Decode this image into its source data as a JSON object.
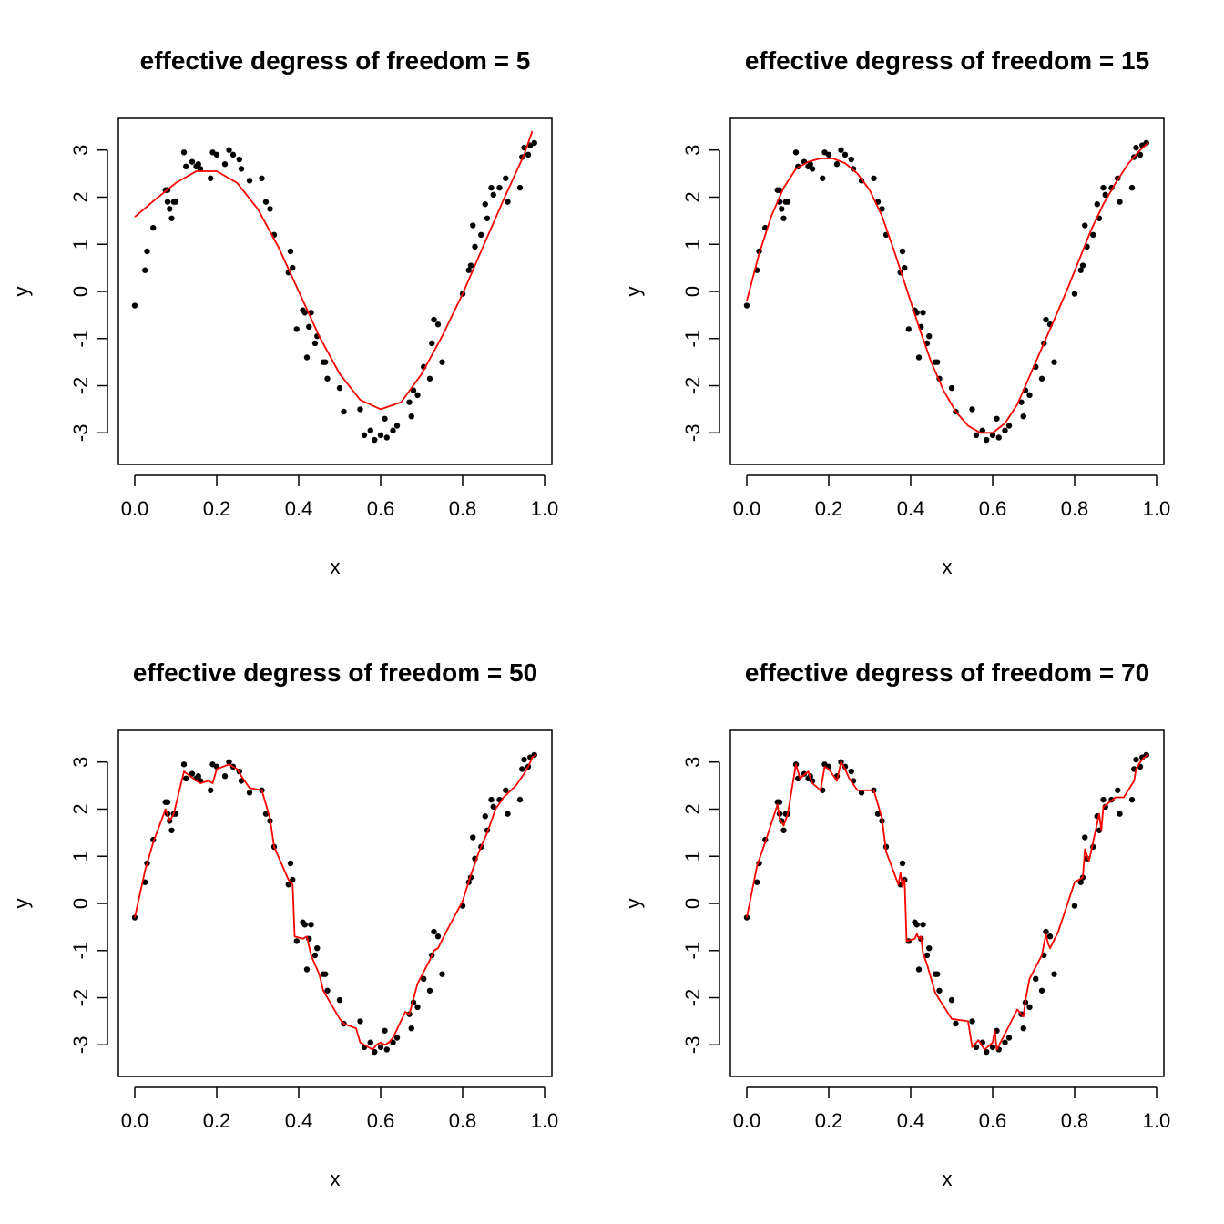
{
  "figure": {
    "panels": [
      {
        "title": "effective degress of freedom = 5",
        "xlabel": "x",
        "ylabel": "y"
      },
      {
        "title": "effective degress of freedom = 15",
        "xlabel": "x",
        "ylabel": "y"
      },
      {
        "title": "effective degress of freedom = 50",
        "xlabel": "x",
        "ylabel": "y"
      },
      {
        "title": "effective degress of freedom = 70",
        "xlabel": "x",
        "ylabel": "y"
      }
    ]
  },
  "chart_data": [
    {
      "type": "scatter",
      "title": "effective degress of freedom = 5",
      "xlabel": "x",
      "ylabel": "y",
      "xlim": [
        0,
        1
      ],
      "ylim": [
        -3.4,
        3.4
      ],
      "xticks": [
        "0.0",
        "0.2",
        "0.4",
        "0.6",
        "0.8",
        "1.0"
      ],
      "yticks": [
        "-3",
        "-2",
        "-1",
        "0",
        "1",
        "2",
        "3"
      ],
      "grid": false,
      "points": {
        "name": "",
        "color": "#000000",
        "ref": "shared_points"
      },
      "fit": {
        "color": "#ff0000",
        "x": [
          0,
          0.05,
          0.1,
          0.15,
          0.2,
          0.25,
          0.3,
          0.35,
          0.4,
          0.45,
          0.5,
          0.55,
          0.6,
          0.65,
          0.7,
          0.75,
          0.8,
          0.85,
          0.9,
          0.95,
          0.97
        ],
        "y": [
          1.58,
          1.95,
          2.3,
          2.55,
          2.55,
          2.3,
          1.75,
          0.95,
          0.0,
          -0.95,
          -1.75,
          -2.3,
          -2.5,
          -2.35,
          -1.75,
          -0.95,
          -0.05,
          0.95,
          1.95,
          2.9,
          3.4
        ]
      }
    },
    {
      "type": "scatter",
      "title": "effective degress of freedom = 15",
      "xlabel": "x",
      "ylabel": "y",
      "xlim": [
        0,
        1
      ],
      "ylim": [
        -3.4,
        3.4
      ],
      "xticks": [
        "0.0",
        "0.2",
        "0.4",
        "0.6",
        "0.8",
        "1.0"
      ],
      "yticks": [
        "-3",
        "-2",
        "-1",
        "0",
        "1",
        "2",
        "3"
      ],
      "grid": false,
      "points": {
        "name": "",
        "color": "#000000",
        "ref": "shared_points"
      },
      "fit": {
        "color": "#ff0000",
        "x": [
          0,
          0.03,
          0.06,
          0.09,
          0.12,
          0.15,
          0.18,
          0.21,
          0.24,
          0.27,
          0.3,
          0.33,
          0.36,
          0.39,
          0.42,
          0.45,
          0.48,
          0.51,
          0.54,
          0.57,
          0.6,
          0.63,
          0.66,
          0.69,
          0.72,
          0.75,
          0.78,
          0.81,
          0.84,
          0.87,
          0.9,
          0.93,
          0.96,
          0.98
        ],
        "y": [
          -0.2,
          0.8,
          1.6,
          2.2,
          2.6,
          2.75,
          2.82,
          2.82,
          2.72,
          2.5,
          2.15,
          1.6,
          0.85,
          0.05,
          -0.75,
          -1.5,
          -2.1,
          -2.55,
          -2.85,
          -3.0,
          -3.0,
          -2.8,
          -2.4,
          -1.8,
          -1.2,
          -0.6,
          0.0,
          0.65,
          1.3,
          1.85,
          2.3,
          2.7,
          3.0,
          3.15
        ]
      }
    },
    {
      "type": "scatter",
      "title": "effective degress of freedom = 50",
      "xlabel": "x",
      "ylabel": "y",
      "xlim": [
        0,
        1
      ],
      "ylim": [
        -3.4,
        3.4
      ],
      "xticks": [
        "0.0",
        "0.2",
        "0.4",
        "0.6",
        "0.8",
        "1.0"
      ],
      "yticks": [
        "-3",
        "-2",
        "-1",
        "0",
        "1",
        "2",
        "3"
      ],
      "grid": false,
      "points": {
        "name": "",
        "color": "#000000",
        "ref": "shared_points"
      },
      "fit": {
        "color": "#ff0000",
        "x": [
          0,
          0.025,
          0.045,
          0.075,
          0.085,
          0.095,
          0.12,
          0.135,
          0.15,
          0.16,
          0.18,
          0.19,
          0.2,
          0.23,
          0.25,
          0.26,
          0.28,
          0.31,
          0.33,
          0.34,
          0.375,
          0.385,
          0.39,
          0.41,
          0.42,
          0.43,
          0.44,
          0.45,
          0.46,
          0.5,
          0.51,
          0.54,
          0.55,
          0.56,
          0.58,
          0.59,
          0.6,
          0.61,
          0.62,
          0.63,
          0.66,
          0.67,
          0.69,
          0.72,
          0.73,
          0.74,
          0.76,
          0.8,
          0.82,
          0.84,
          0.86,
          0.88,
          0.9,
          0.93,
          0.95,
          0.96,
          0.97,
          0.98
        ],
        "y": [
          -0.3,
          0.7,
          1.3,
          2.0,
          1.75,
          1.9,
          2.8,
          2.7,
          2.6,
          2.55,
          2.6,
          2.55,
          2.85,
          2.95,
          2.85,
          2.7,
          2.45,
          2.4,
          1.8,
          1.2,
          0.5,
          0.4,
          -0.7,
          -0.75,
          -0.7,
          -1.1,
          -1.3,
          -1.5,
          -1.85,
          -2.45,
          -2.55,
          -2.65,
          -2.95,
          -3.0,
          -3.1,
          -3.0,
          -2.95,
          -3.0,
          -2.95,
          -2.85,
          -2.3,
          -2.35,
          -1.7,
          -1.2,
          -1.0,
          -0.95,
          -0.6,
          0.05,
          0.6,
          1.1,
          1.5,
          2.0,
          2.25,
          2.5,
          2.75,
          2.9,
          3.1,
          3.15
        ]
      }
    },
    {
      "type": "scatter",
      "title": "effective degress of freedom = 70",
      "xlabel": "x",
      "ylabel": "y",
      "xlim": [
        0,
        1
      ],
      "ylim": [
        -3.4,
        3.4
      ],
      "xticks": [
        "0.0",
        "0.2",
        "0.4",
        "0.6",
        "0.8",
        "1.0"
      ],
      "yticks": [
        "-3",
        "-2",
        "-1",
        "0",
        "1",
        "2",
        "3"
      ],
      "grid": false,
      "points": {
        "name": "",
        "color": "#000000",
        "ref": "shared_points"
      },
      "fit": {
        "color": "#ff0000",
        "x": [
          0,
          0.025,
          0.045,
          0.075,
          0.08,
          0.09,
          0.1,
          0.12,
          0.13,
          0.15,
          0.16,
          0.18,
          0.19,
          0.2,
          0.22,
          0.23,
          0.24,
          0.25,
          0.27,
          0.29,
          0.31,
          0.33,
          0.34,
          0.37,
          0.375,
          0.38,
          0.385,
          0.39,
          0.41,
          0.415,
          0.42,
          0.425,
          0.43,
          0.44,
          0.46,
          0.5,
          0.54,
          0.55,
          0.565,
          0.58,
          0.6,
          0.605,
          0.61,
          0.625,
          0.66,
          0.675,
          0.68,
          0.69,
          0.72,
          0.73,
          0.735,
          0.74,
          0.76,
          0.8,
          0.82,
          0.825,
          0.835,
          0.86,
          0.865,
          0.87,
          0.9,
          0.92,
          0.945,
          0.95,
          0.96,
          0.97,
          0.98
        ],
        "y": [
          -0.3,
          0.8,
          1.3,
          2.1,
          1.8,
          1.65,
          1.9,
          2.95,
          2.65,
          2.8,
          2.55,
          2.4,
          2.9,
          2.85,
          2.6,
          3.0,
          2.85,
          2.65,
          2.4,
          2.4,
          2.4,
          1.8,
          1.1,
          0.4,
          0.65,
          0.35,
          0.5,
          -0.8,
          -0.75,
          -0.65,
          -0.75,
          -0.7,
          -1.05,
          -1.3,
          -1.9,
          -2.45,
          -2.5,
          -3.05,
          -2.9,
          -3.1,
          -2.95,
          -2.7,
          -3.1,
          -2.85,
          -2.25,
          -2.4,
          -2.05,
          -1.6,
          -1.1,
          -0.65,
          -0.85,
          -0.95,
          -0.6,
          0.45,
          0.55,
          1.15,
          0.9,
          1.9,
          1.55,
          2.05,
          2.25,
          2.25,
          2.6,
          2.85,
          3.0,
          3.1,
          3.15
        ]
      }
    }
  ],
  "shared_points": {
    "x": [
      0.0,
      0.025,
      0.03,
      0.045,
      0.075,
      0.08,
      0.08,
      0.085,
      0.09,
      0.095,
      0.1,
      0.12,
      0.125,
      0.14,
      0.15,
      0.155,
      0.16,
      0.185,
      0.19,
      0.2,
      0.22,
      0.23,
      0.24,
      0.255,
      0.26,
      0.28,
      0.31,
      0.32,
      0.33,
      0.34,
      0.375,
      0.38,
      0.385,
      0.395,
      0.41,
      0.415,
      0.42,
      0.425,
      0.43,
      0.44,
      0.445,
      0.46,
      0.465,
      0.47,
      0.5,
      0.51,
      0.55,
      0.56,
      0.575,
      0.585,
      0.6,
      0.61,
      0.615,
      0.63,
      0.64,
      0.67,
      0.675,
      0.68,
      0.69,
      0.705,
      0.72,
      0.725,
      0.73,
      0.74,
      0.75,
      0.8,
      0.815,
      0.82,
      0.825,
      0.83,
      0.845,
      0.855,
      0.86,
      0.87,
      0.875,
      0.89,
      0.905,
      0.91,
      0.94,
      0.945,
      0.95,
      0.96,
      0.965,
      0.975
    ],
    "y": [
      -0.3,
      0.45,
      0.85,
      1.35,
      2.15,
      2.15,
      1.9,
      1.75,
      1.55,
      1.9,
      1.9,
      2.95,
      2.65,
      2.75,
      2.65,
      2.7,
      2.6,
      2.4,
      2.95,
      2.9,
      2.7,
      3.0,
      2.9,
      2.8,
      2.6,
      2.35,
      2.4,
      1.9,
      1.75,
      1.2,
      0.4,
      0.85,
      0.5,
      -0.8,
      -0.4,
      -0.45,
      -1.4,
      -0.75,
      -0.45,
      -1.1,
      -0.95,
      -1.5,
      -1.5,
      -1.85,
      -2.05,
      -2.55,
      -2.5,
      -3.05,
      -2.95,
      -3.15,
      -3.05,
      -2.7,
      -3.1,
      -2.95,
      -2.85,
      -2.35,
      -2.65,
      -2.1,
      -2.2,
      -1.6,
      -1.85,
      -1.1,
      -0.6,
      -0.7,
      -1.5,
      -0.05,
      0.45,
      0.55,
      1.4,
      0.95,
      1.2,
      1.85,
      1.55,
      2.2,
      2.05,
      2.2,
      2.4,
      1.9,
      2.2,
      2.85,
      3.05,
      2.9,
      3.1,
      3.15
    ]
  }
}
